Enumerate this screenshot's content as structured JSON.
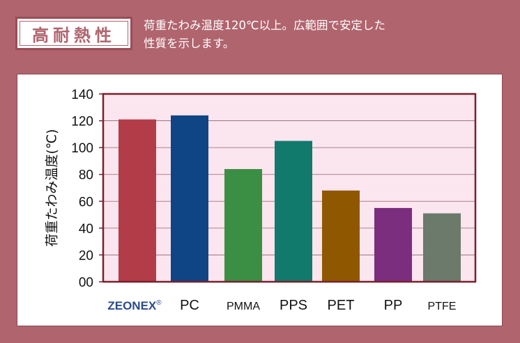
{
  "header": {
    "badge_label": "高耐熱性",
    "description_line1": "荷重たわみ温度120℃以上。広範囲で安定した",
    "description_line2": "性質を示します。"
  },
  "colors": {
    "page_background": "#b0646e",
    "plot_background": "#fbe5ee",
    "frame": "#7a1f2b"
  },
  "chart_data": {
    "type": "bar",
    "title": "",
    "xlabel": "",
    "ylabel": "荷重たわみ温度(℃)",
    "ylim": [
      0,
      140
    ],
    "yticks": [
      0,
      20,
      40,
      60,
      80,
      100,
      120,
      140
    ],
    "ytick_labels": [
      "00",
      "20",
      "40",
      "60",
      "80",
      "100",
      "120",
      "140"
    ],
    "grid": true,
    "categories": [
      "ZEONEX",
      "PC",
      "PMMA",
      "PPS",
      "PET",
      "PP",
      "PTFE"
    ],
    "trademark_mark": "®",
    "values": [
      121,
      124,
      84,
      105,
      68,
      55,
      51
    ],
    "bar_colors": [
      "#b23c48",
      "#0f4585",
      "#3b8f44",
      "#127a6d",
      "#8f5800",
      "#7b2d7e",
      "#6b7a6a"
    ]
  }
}
